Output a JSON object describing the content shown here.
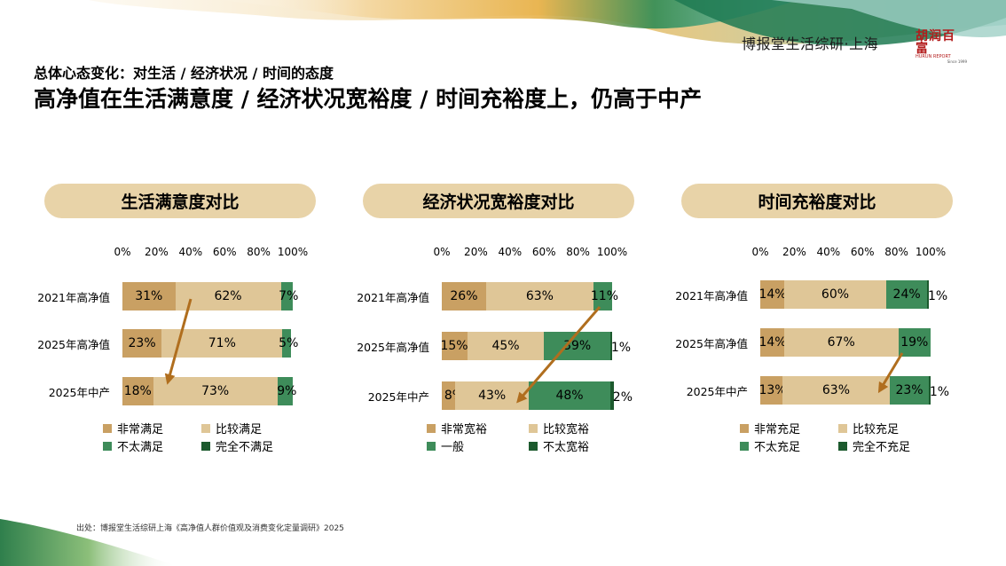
{
  "header": {
    "brand": "博报堂生活综研·上海",
    "logo_main": "胡润百富",
    "logo_sub": "HURUN REPORT",
    "logo_since": "Since 1999",
    "subtitle": "总体心态变化：对生活 / 经济状况 / 时间的态度",
    "title": "高净值在生活满意度 / 经济状况宽裕度 / 时间充裕度上，仍高于中产"
  },
  "colors": {
    "very": "#c9a063",
    "fairly": "#dfc697",
    "notvery": "#3e8c5a",
    "none": "#1c5a2e",
    "arrow": "#b06e1e",
    "pill": "#e8d3a8"
  },
  "source": "出处：博报堂生活综研上海《高净值人群价值观及消费变化定量调研》2025",
  "chart_data": [
    {
      "type": "bar",
      "stacked": true,
      "orientation": "horizontal",
      "title": "生活满意度对比",
      "xlim": [
        0,
        100
      ],
      "ticks": [
        "0%",
        "20%",
        "40%",
        "60%",
        "80%",
        "100%"
      ],
      "categories": [
        "2021年高净值",
        "2025年高净值",
        "2025年中产"
      ],
      "series": [
        {
          "name": "非常满足",
          "values": [
            31,
            23,
            18
          ],
          "labels": [
            "31%",
            "23%",
            "18%"
          ]
        },
        {
          "name": "比较满足",
          "values": [
            62,
            71,
            73
          ],
          "labels": [
            "62%",
            "71%",
            "73%"
          ]
        },
        {
          "name": "不太满足",
          "values": [
            7,
            5,
            9
          ],
          "labels": [
            "7%",
            "5%",
            "9%"
          ]
        },
        {
          "name": "完全不满足",
          "values": [
            0,
            0,
            0
          ],
          "labels": [
            "",
            "",
            ""
          ]
        }
      ]
    },
    {
      "type": "bar",
      "stacked": true,
      "orientation": "horizontal",
      "title": "经济状况宽裕度对比",
      "xlim": [
        0,
        100
      ],
      "ticks": [
        "0%",
        "20%",
        "40%",
        "60%",
        "80%",
        "100%"
      ],
      "categories": [
        "2021年高净值",
        "2025年高净值",
        "2025年中产"
      ],
      "series": [
        {
          "name": "非常宽裕",
          "values": [
            26,
            15,
            8
          ],
          "labels": [
            "26%",
            "15%",
            "8%"
          ]
        },
        {
          "name": "比较宽裕",
          "values": [
            63,
            45,
            43
          ],
          "labels": [
            "63%",
            "45%",
            "43%"
          ]
        },
        {
          "name": "一般",
          "values": [
            11,
            39,
            48
          ],
          "labels": [
            "11%",
            "39%",
            "48%"
          ]
        },
        {
          "name": "不太宽裕",
          "values": [
            0,
            1,
            2
          ],
          "labels": [
            "",
            "1%",
            "2%"
          ]
        }
      ]
    },
    {
      "type": "bar",
      "stacked": true,
      "orientation": "horizontal",
      "title": "时间充裕度对比",
      "xlim": [
        0,
        100
      ],
      "ticks": [
        "0%",
        "20%",
        "40%",
        "60%",
        "80%",
        "100%"
      ],
      "categories": [
        "2021年高净值",
        "2025年高净值",
        "2025年中产"
      ],
      "series": [
        {
          "name": "非常充足",
          "values": [
            14,
            14,
            13
          ],
          "labels": [
            "14%",
            "14%",
            "13%"
          ]
        },
        {
          "name": "比较充足",
          "values": [
            60,
            67,
            63
          ],
          "labels": [
            "60%",
            "67%",
            "63%"
          ]
        },
        {
          "name": "不太充足",
          "values": [
            24,
            19,
            23
          ],
          "labels": [
            "24%",
            "19%",
            "23%"
          ]
        },
        {
          "name": "完全不充足",
          "values": [
            1,
            0,
            1
          ],
          "labels": [
            "1%",
            "",
            "1%"
          ]
        }
      ]
    }
  ]
}
